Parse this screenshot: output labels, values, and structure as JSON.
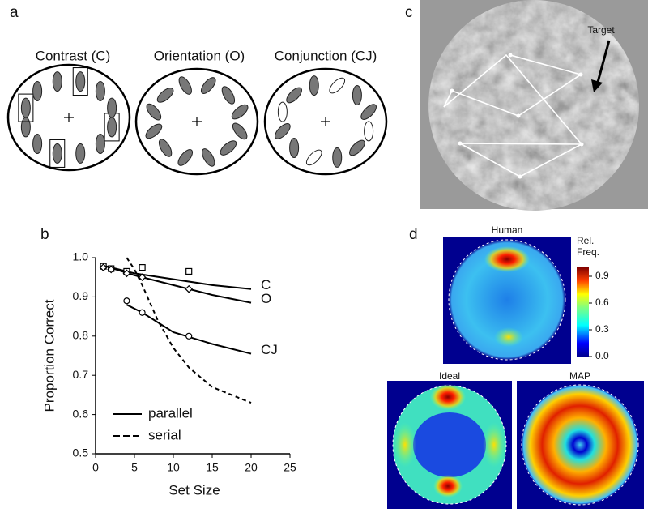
{
  "panel_labels": [
    "a",
    "b",
    "c",
    "d"
  ],
  "panel_a": {
    "titles": [
      "Contrast (C)",
      "Orientation (O)",
      "Conjunction (CJ)"
    ]
  },
  "panel_c": {
    "annotation": "Target"
  },
  "panel_d": {
    "titles": [
      "Human",
      "Ideal",
      "MAP"
    ],
    "colorbar_label": "Rel. Freq.",
    "clim": [
      0,
      1.0
    ],
    "colorbar_ticks": [
      {
        "value": 0,
        "label": "0.0"
      },
      0.3,
      0.6,
      0.9
    ]
  },
  "chart_data": {
    "type": "line",
    "x_label": "Set Size",
    "y_label": "Proportion Correct",
    "xlim": [
      0,
      25
    ],
    "xticks": [
      0,
      5,
      10,
      15,
      20,
      25
    ],
    "ylim": [
      0.5,
      1.0
    ],
    "yticks": [
      0.5,
      0.6,
      0.7,
      0.8,
      0.9,
      {
        "value": 1.0,
        "label": "1.0"
      }
    ],
    "series": [
      {
        "name": "C",
        "color": "#000000",
        "dash": "solid",
        "x": [
          1,
          5,
          10,
          15,
          20
        ],
        "values": [
          0.98,
          0.96,
          0.945,
          0.93,
          0.92
        ]
      },
      {
        "name": "O",
        "color": "#000000",
        "dash": "solid",
        "x": [
          1,
          5,
          10,
          15,
          20
        ],
        "values": [
          0.98,
          0.955,
          0.93,
          0.905,
          0.885
        ]
      },
      {
        "name": "CJ",
        "color": "#000000",
        "dash": "solid",
        "x": [
          4,
          6,
          10,
          15,
          20
        ],
        "values": [
          0.88,
          0.86,
          0.81,
          0.78,
          0.755
        ]
      },
      {
        "color": "#000000",
        "dash": "dashed",
        "x": [
          4,
          5,
          6,
          8,
          10,
          12,
          15,
          20
        ],
        "values": [
          1.0,
          0.97,
          0.93,
          0.84,
          0.77,
          0.72,
          0.67,
          0.63
        ]
      }
    ],
    "points": [
      {
        "marker": "square",
        "x": [
          1,
          2,
          4,
          6,
          12
        ],
        "values": [
          0.978,
          0.972,
          0.965,
          0.975,
          0.965
        ]
      },
      {
        "marker": "diamond",
        "x": [
          1,
          2,
          4,
          6,
          12
        ],
        "values": [
          0.975,
          0.97,
          0.96,
          0.95,
          0.92
        ]
      },
      {
        "marker": "circle",
        "x": [
          4,
          6,
          12
        ],
        "values": [
          0.89,
          0.86,
          0.8
        ]
      }
    ],
    "legend": [
      {
        "label": "parallel",
        "dash": "solid"
      },
      {
        "label": "serial",
        "dash": "dashed"
      }
    ]
  }
}
